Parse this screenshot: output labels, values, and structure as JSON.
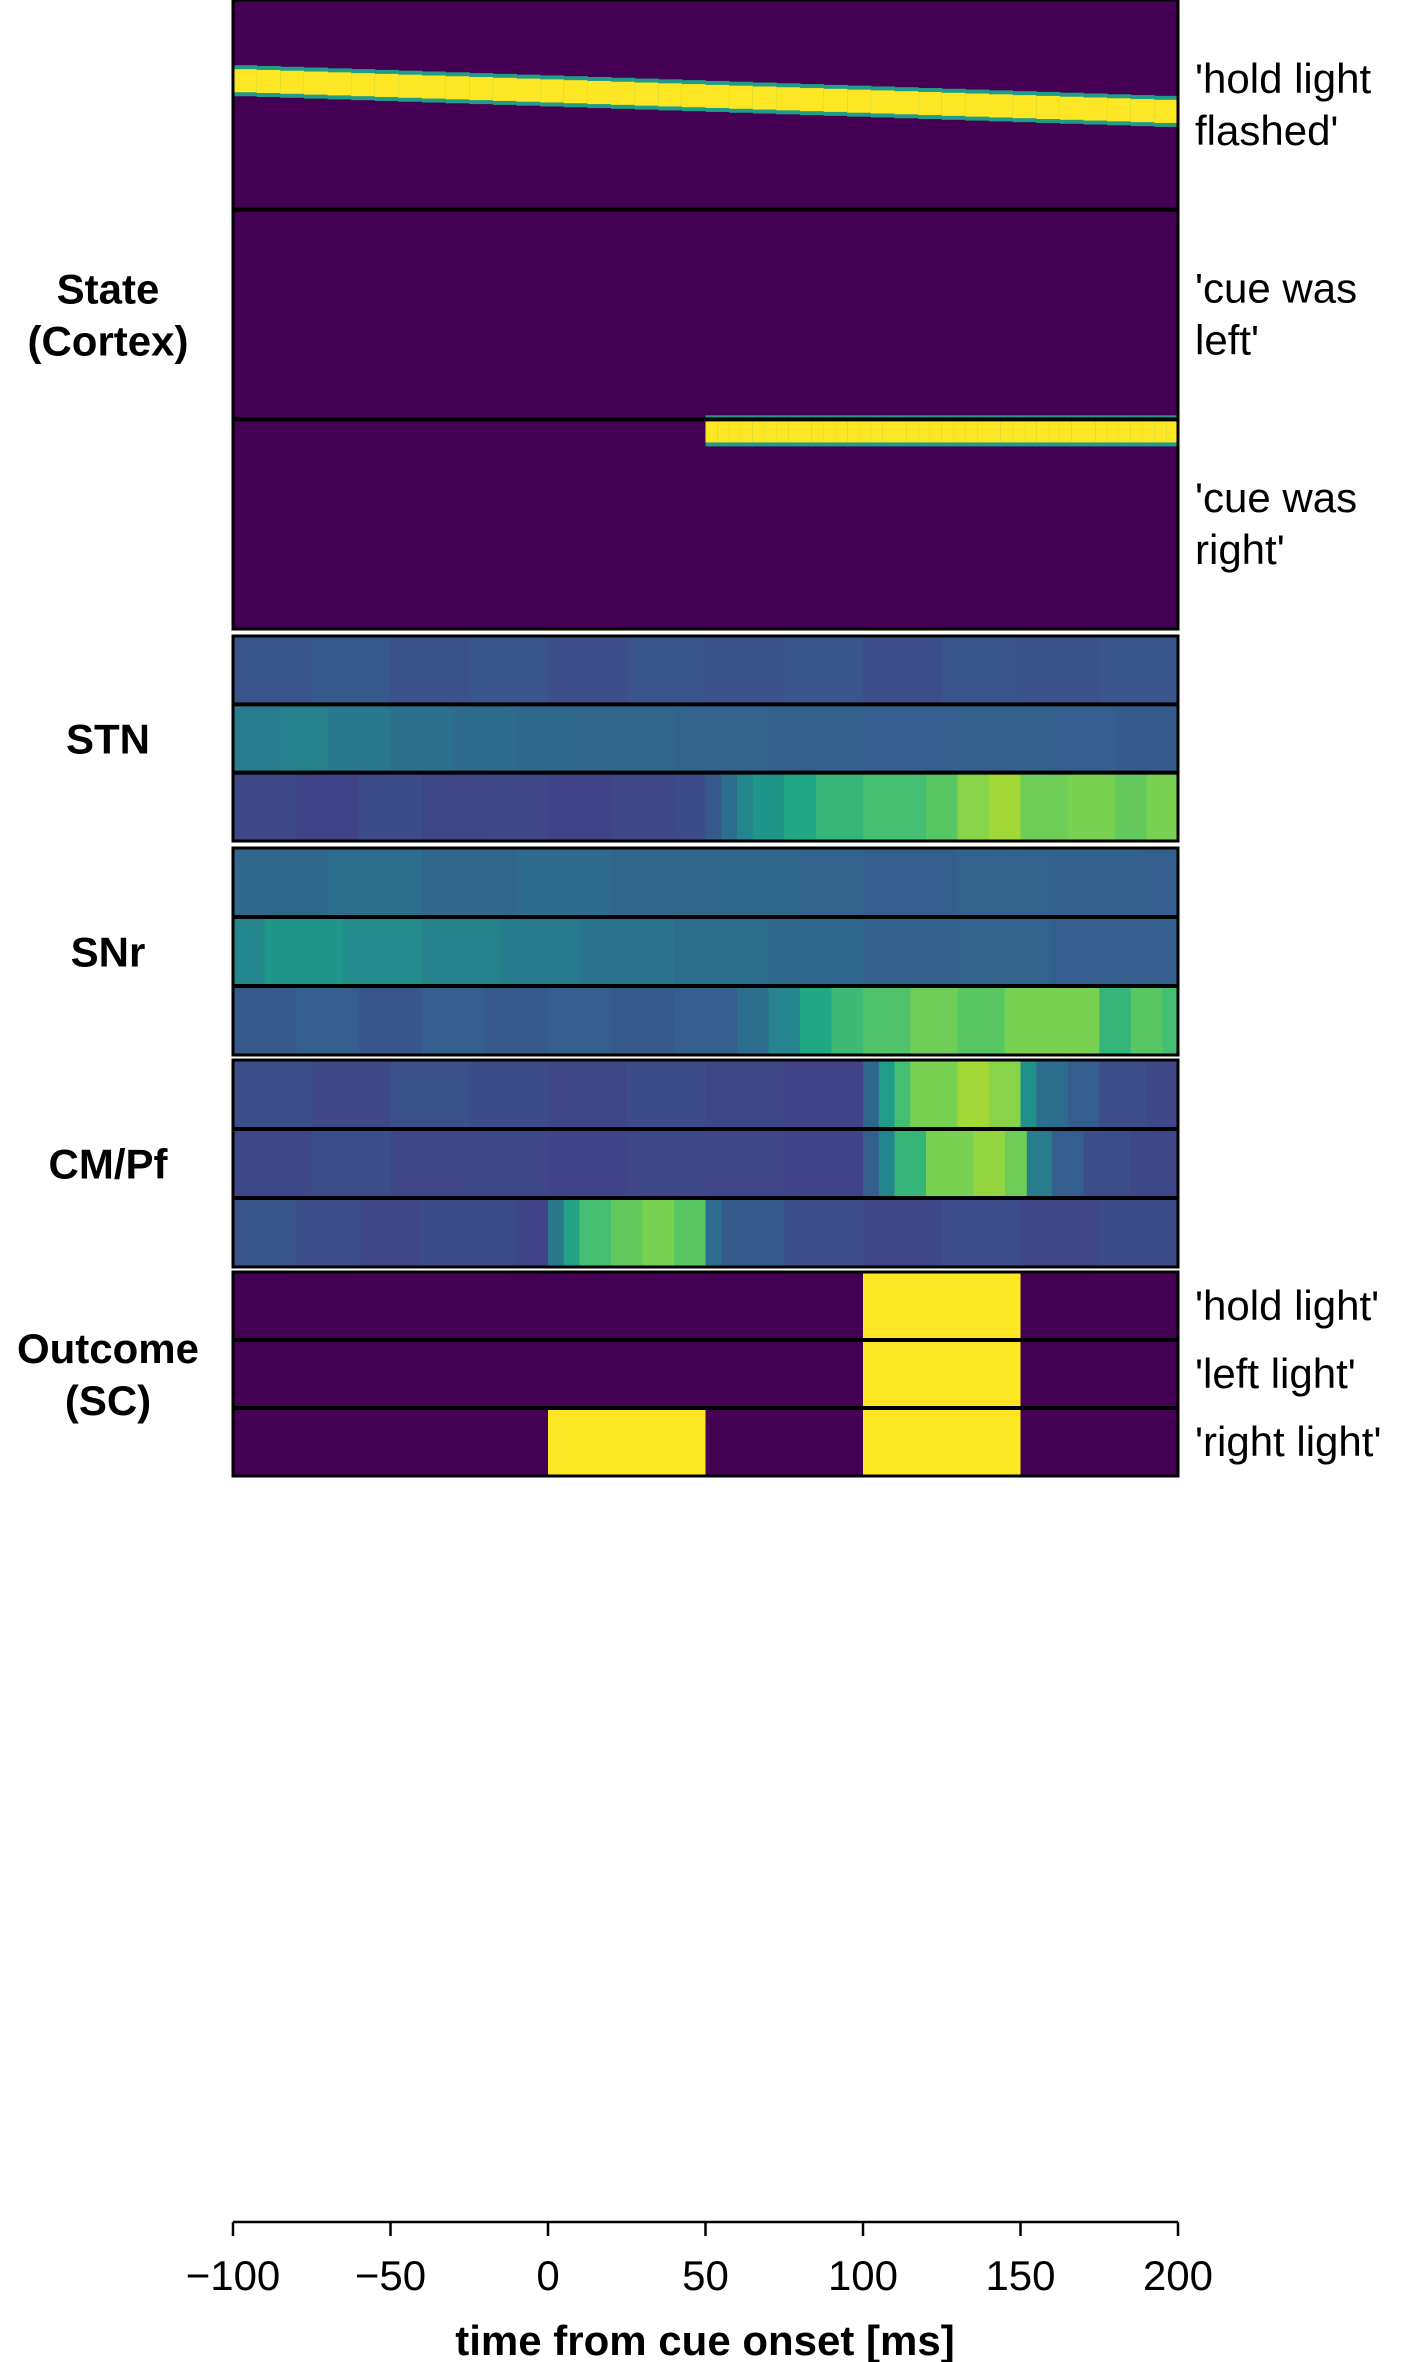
{
  "chart_data": {
    "type": "heatmap",
    "colormap": "viridis",
    "xlabel": "time from cue onset [ms]",
    "xlim": [
      -100,
      200
    ],
    "x_ticks": [
      -100,
      -50,
      0,
      50,
      100,
      150,
      200
    ],
    "x_tick_labels": [
      "−100",
      "−50",
      "0",
      "50",
      "100",
      "150",
      "200"
    ],
    "panels": [
      {
        "id": "state",
        "label_lines": [
          "State",
          "(Cortex)"
        ],
        "rows": [
          {
            "right_label_lines": [
              "'hold light",
              "flashed'"
            ],
            "band": {
              "x_start": -100,
              "x_end": 200,
              "top_start": 0.33,
              "top_end": 0.48,
              "thickness": 0.11
            }
          },
          {
            "right_label_lines": [
              "'cue was",
              "left'"
            ],
            "band": null
          },
          {
            "right_label_lines": [
              "'cue was",
              "right'"
            ],
            "band": {
              "x_start": 50,
              "x_end": 200,
              "top_start": 0.0,
              "top_end": 0.0,
              "thickness": 0.11
            }
          }
        ]
      },
      {
        "id": "stn",
        "label_lines": [
          "STN"
        ],
        "rows": [
          {
            "segments": [
              [
                -100,
                0.26
              ],
              [
                -75,
                0.28
              ],
              [
                -50,
                0.25
              ],
              [
                -25,
                0.27
              ],
              [
                0,
                0.24
              ],
              [
                25,
                0.26
              ],
              [
                50,
                0.25
              ],
              [
                75,
                0.27
              ],
              [
                100,
                0.24
              ],
              [
                125,
                0.26
              ],
              [
                150,
                0.25
              ],
              [
                175,
                0.27
              ]
            ]
          },
          {
            "segments": [
              [
                -100,
                0.42
              ],
              [
                -85,
                0.44
              ],
              [
                -70,
                0.4
              ],
              [
                -50,
                0.37
              ],
              [
                -30,
                0.35
              ],
              [
                -10,
                0.34
              ],
              [
                10,
                0.33
              ],
              [
                40,
                0.32
              ],
              [
                70,
                0.31
              ],
              [
                100,
                0.3
              ],
              [
                130,
                0.31
              ],
              [
                160,
                0.3
              ],
              [
                180,
                0.29
              ]
            ]
          },
          {
            "segments": [
              [
                -100,
                0.22
              ],
              [
                -80,
                0.2
              ],
              [
                -60,
                0.23
              ],
              [
                -40,
                0.21
              ],
              [
                -20,
                0.22
              ],
              [
                0,
                0.2
              ],
              [
                20,
                0.22
              ],
              [
                40,
                0.23
              ],
              [
                50,
                0.28
              ],
              [
                55,
                0.36
              ],
              [
                60,
                0.46
              ],
              [
                65,
                0.52
              ],
              [
                75,
                0.6
              ],
              [
                85,
                0.66
              ],
              [
                100,
                0.7
              ],
              [
                120,
                0.74
              ],
              [
                130,
                0.82
              ],
              [
                140,
                0.86
              ],
              [
                150,
                0.78
              ],
              [
                165,
                0.8
              ],
              [
                180,
                0.76
              ],
              [
                190,
                0.8
              ]
            ]
          }
        ]
      },
      {
        "id": "snr",
        "label_lines": [
          "SNr"
        ],
        "rows": [
          {
            "segments": [
              [
                -100,
                0.34
              ],
              [
                -70,
                0.36
              ],
              [
                -40,
                0.33
              ],
              [
                -10,
                0.35
              ],
              [
                20,
                0.33
              ],
              [
                50,
                0.34
              ],
              [
                80,
                0.32
              ],
              [
                100,
                0.3
              ],
              [
                130,
                0.32
              ],
              [
                160,
                0.31
              ],
              [
                190,
                0.3
              ]
            ]
          },
          {
            "segments": [
              [
                -100,
                0.46
              ],
              [
                -90,
                0.52
              ],
              [
                -65,
                0.48
              ],
              [
                -40,
                0.44
              ],
              [
                -15,
                0.41
              ],
              [
                10,
                0.38
              ],
              [
                40,
                0.36
              ],
              [
                70,
                0.34
              ],
              [
                100,
                0.31
              ],
              [
                130,
                0.32
              ],
              [
                160,
                0.3
              ]
            ]
          },
          {
            "segments": [
              [
                -100,
                0.28
              ],
              [
                -80,
                0.3
              ],
              [
                -60,
                0.27
              ],
              [
                -40,
                0.3
              ],
              [
                -20,
                0.28
              ],
              [
                0,
                0.3
              ],
              [
                20,
                0.28
              ],
              [
                40,
                0.3
              ],
              [
                60,
                0.36
              ],
              [
                70,
                0.45
              ],
              [
                80,
                0.6
              ],
              [
                90,
                0.68
              ],
              [
                100,
                0.72
              ],
              [
                115,
                0.78
              ],
              [
                130,
                0.74
              ],
              [
                145,
                0.8
              ],
              [
                175,
                0.66
              ],
              [
                185,
                0.74
              ],
              [
                195,
                0.7
              ]
            ]
          }
        ]
      },
      {
        "id": "cmpf",
        "label_lines": [
          "CM/Pf"
        ],
        "rows": [
          {
            "segments": [
              [
                -100,
                0.24
              ],
              [
                -75,
                0.22
              ],
              [
                -50,
                0.25
              ],
              [
                -25,
                0.23
              ],
              [
                0,
                0.21
              ],
              [
                25,
                0.23
              ],
              [
                50,
                0.21
              ],
              [
                75,
                0.2
              ],
              [
                100,
                0.34
              ],
              [
                105,
                0.55
              ],
              [
                110,
                0.7
              ],
              [
                115,
                0.8
              ],
              [
                130,
                0.86
              ],
              [
                140,
                0.82
              ],
              [
                150,
                0.5
              ],
              [
                155,
                0.36
              ],
              [
                165,
                0.3
              ],
              [
                175,
                0.24
              ],
              [
                190,
                0.22
              ]
            ]
          },
          {
            "segments": [
              [
                -100,
                0.22
              ],
              [
                -75,
                0.24
              ],
              [
                -50,
                0.21
              ],
              [
                -25,
                0.22
              ],
              [
                0,
                0.2
              ],
              [
                25,
                0.22
              ],
              [
                50,
                0.21
              ],
              [
                75,
                0.2
              ],
              [
                100,
                0.3
              ],
              [
                105,
                0.46
              ],
              [
                110,
                0.66
              ],
              [
                120,
                0.8
              ],
              [
                135,
                0.84
              ],
              [
                145,
                0.78
              ],
              [
                152,
                0.42
              ],
              [
                160,
                0.3
              ],
              [
                170,
                0.24
              ],
              [
                185,
                0.22
              ]
            ]
          },
          {
            "segments": [
              [
                -100,
                0.26
              ],
              [
                -80,
                0.24
              ],
              [
                -60,
                0.22
              ],
              [
                -40,
                0.23
              ],
              [
                -10,
                0.2
              ],
              [
                0,
                0.4
              ],
              [
                5,
                0.58
              ],
              [
                10,
                0.7
              ],
              [
                20,
                0.76
              ],
              [
                30,
                0.8
              ],
              [
                40,
                0.74
              ],
              [
                50,
                0.36
              ],
              [
                55,
                0.28
              ],
              [
                75,
                0.24
              ],
              [
                100,
                0.22
              ],
              [
                125,
                0.24
              ],
              [
                150,
                0.21
              ],
              [
                175,
                0.23
              ]
            ]
          }
        ]
      },
      {
        "id": "outcome",
        "label_lines": [
          "Outcome",
          "(SC)"
        ],
        "rows": [
          {
            "right_label_lines": [
              "'hold light'"
            ],
            "on": [
              [
                100,
                150
              ]
            ]
          },
          {
            "right_label_lines": [
              "'left light'"
            ],
            "on": [
              [
                100,
                150
              ]
            ]
          },
          {
            "right_label_lines": [
              "'right light'"
            ],
            "on": [
              [
                0,
                50
              ],
              [
                100,
                150
              ]
            ]
          }
        ]
      }
    ]
  }
}
